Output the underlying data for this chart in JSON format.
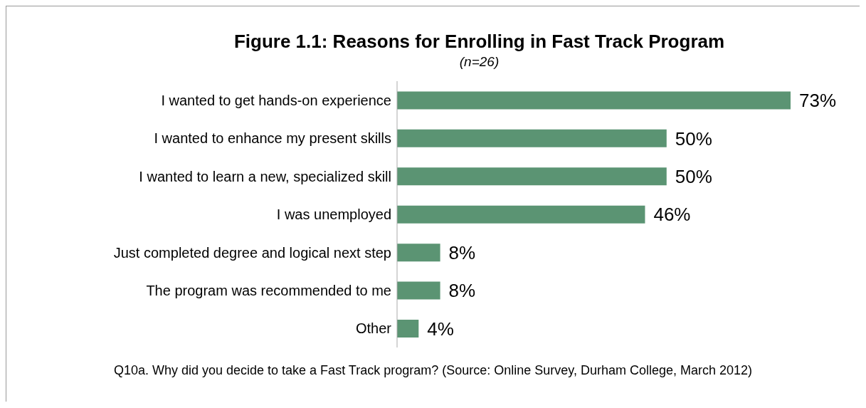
{
  "chart_data": {
    "type": "bar",
    "orientation": "horizontal",
    "title": "Figure 1.1: Reasons for Enrolling in Fast Track Program",
    "subtitle": "(n=26)",
    "categories": [
      "I wanted to get hands-on experience",
      "I wanted to enhance my present skills",
      "I wanted to learn a new, specialized skill",
      "I was unemployed",
      "Just completed degree and logical next step",
      "The program was recommended to me",
      "Other"
    ],
    "values": [
      73,
      50,
      50,
      46,
      8,
      8,
      4
    ],
    "value_labels": [
      "73%",
      "50%",
      "50%",
      "46%",
      "8%",
      "8%",
      "4%"
    ],
    "color": "#5b9473",
    "annotations": [
      "Q10a. Why did you decide to take a Fast Track program? (Source: Online Survey, Durham College, March 2012)"
    ],
    "grid": false,
    "legend": false
  }
}
